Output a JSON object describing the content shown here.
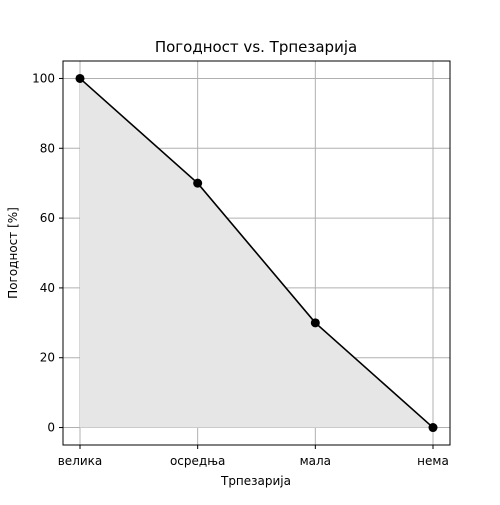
{
  "chart_data": {
    "type": "area",
    "title": "Погодност vs. Трпезарија",
    "xlabel": "Трпезарија",
    "ylabel": "Погодност [%]",
    "categories": [
      "велика",
      "осредња",
      "мала",
      "нема"
    ],
    "values": [
      100,
      70,
      30,
      0
    ],
    "ylim": [
      -5,
      105
    ],
    "yticks": [
      0,
      20,
      40,
      60,
      80,
      100
    ],
    "grid": true,
    "colors": {
      "line": "#000000",
      "fill": "#e6e6e6",
      "grid": "#b0b0b0",
      "marker": "#000000"
    }
  }
}
